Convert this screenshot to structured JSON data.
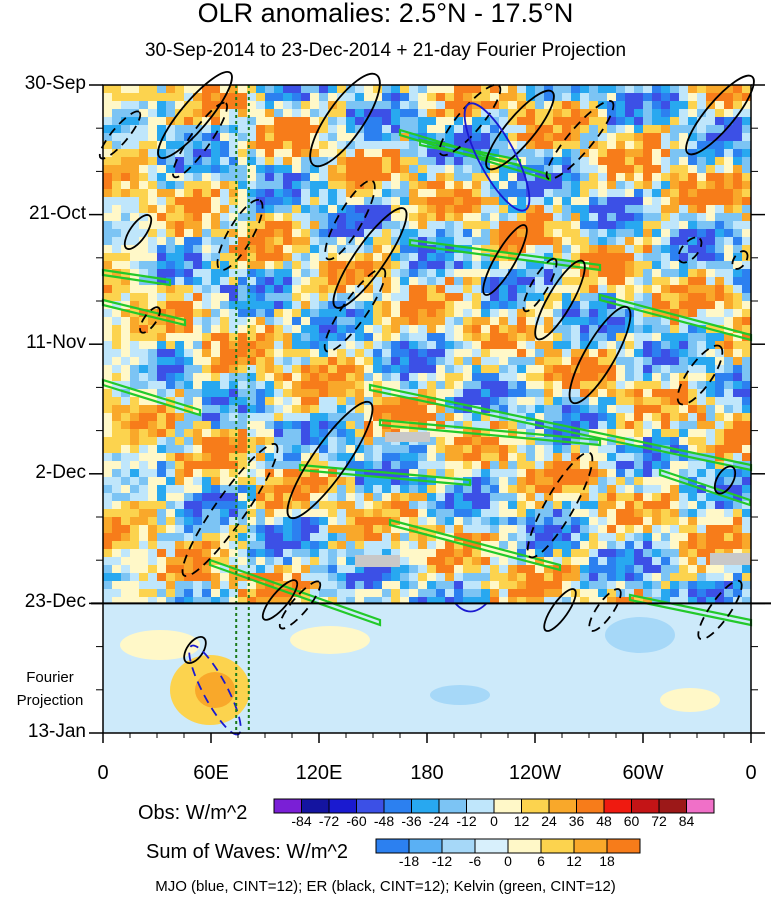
{
  "chart_data": {
    "type": "heatmap",
    "title": "OLR anomalies: 2.5°N - 17.5°N",
    "subtitle": "30-Sep-2014 to 23-Dec-2014 + 21-day Fourier Projection",
    "x_ticks": [
      "0",
      "60E",
      "120E",
      "180",
      "120W",
      "60W",
      "0"
    ],
    "x_tick_values": [
      0,
      60,
      120,
      180,
      240,
      300,
      360
    ],
    "y_ticks": [
      "30-Sep",
      "21-Oct",
      "11-Nov",
      "2-Dec",
      "23-Dec",
      "13-Jan"
    ],
    "y_tick_days": [
      0,
      21,
      42,
      63,
      84,
      105
    ],
    "projection_label_line1": "Fourier",
    "projection_label_line2": "Projection",
    "forecast_boundary_day": 84,
    "obs_colorbar": {
      "label": "Obs: W/m^2",
      "levels": [
        -84,
        -72,
        -60,
        -48,
        -36,
        -24,
        -12,
        0,
        12,
        24,
        36,
        48,
        60,
        72,
        84
      ],
      "colors": [
        "#7a1fd6",
        "#1414a0",
        "#1a1ad0",
        "#3c50e6",
        "#2c80f0",
        "#28a8f0",
        "#7cc4f4",
        "#bfe6fb",
        "#fff8c8",
        "#fcd34e",
        "#f9a82a",
        "#f77c1a",
        "#ef1a10",
        "#c41416",
        "#9c1818",
        "#f070c8"
      ]
    },
    "waves_colorbar": {
      "label": "Sum of Waves: W/m^2",
      "levels": [
        -18,
        -12,
        -6,
        0,
        6,
        12,
        18
      ],
      "colors": [
        "#2c80f0",
        "#5ab0f4",
        "#a6d8f8",
        "#d8f0fc",
        "#fff8c8",
        "#fcd34e",
        "#f9a82a",
        "#f77c1a"
      ]
    },
    "contours_legend": "MJO (blue, CINT=12); ER (black, CINT=12); Kelvin (green, CINT=12)",
    "reference_lines_lon": [
      74,
      81
    ],
    "colors": {
      "mjo": "#1a1ad0",
      "er": "#000000",
      "kelvin": "#22c92a",
      "ref": "#1a7a1a"
    }
  }
}
